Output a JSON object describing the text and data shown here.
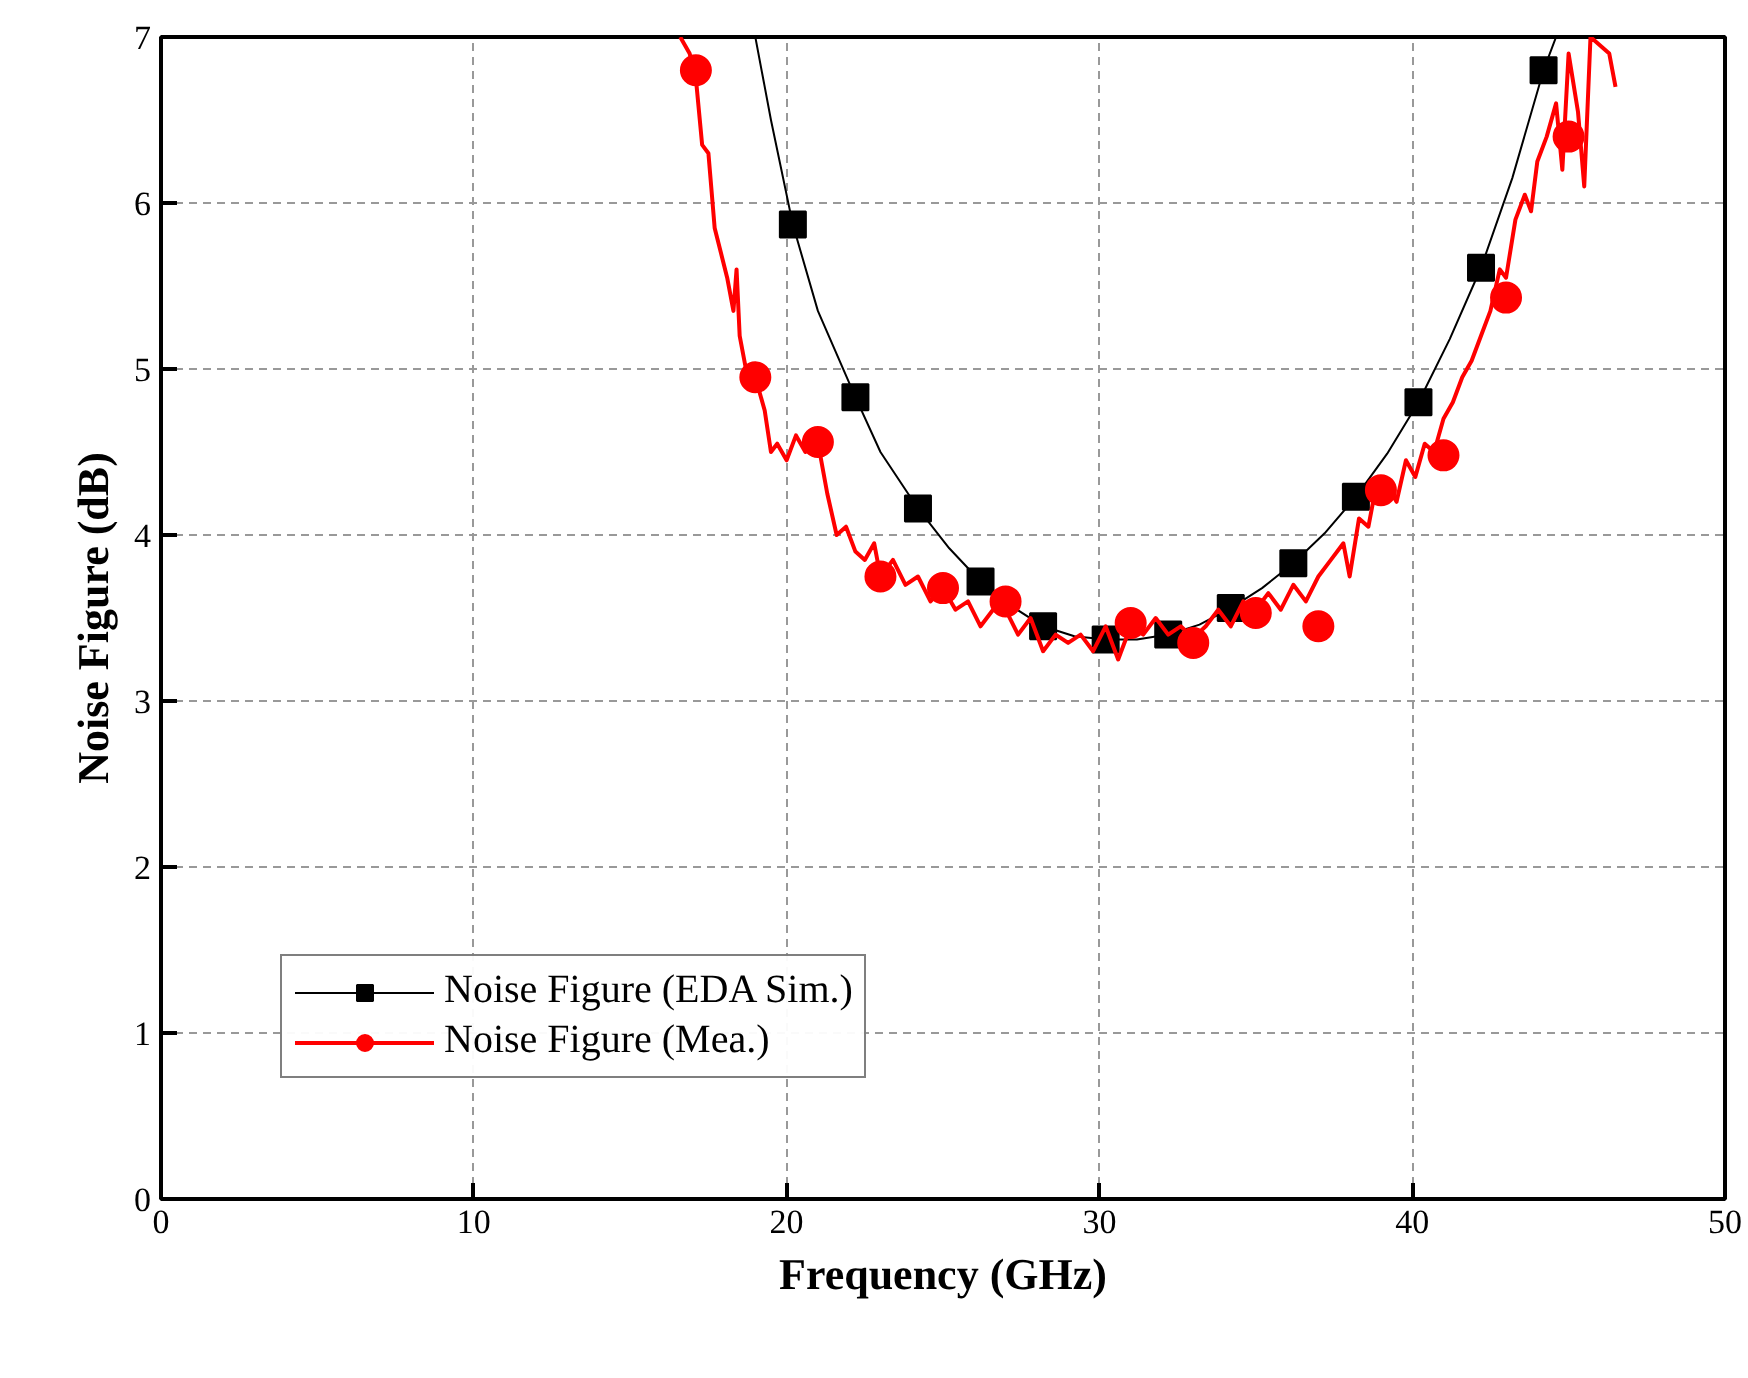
{
  "chart_data": {
    "type": "line",
    "xlabel": "Frequency (GHz)",
    "ylabel": "Noise Figure (dB)",
    "xlim": [
      0,
      50
    ],
    "ylim": [
      0,
      7
    ],
    "xticks": [
      0,
      10,
      20,
      30,
      40,
      50
    ],
    "yticks": [
      0,
      1,
      2,
      3,
      4,
      5,
      6,
      7
    ],
    "grid": true,
    "legend": "bottom left",
    "series": [
      {
        "name": "Noise Figure (EDA Sim.)",
        "color": "#000000",
        "marker": "none",
        "x": [
          19.0,
          19.5,
          20.2,
          21,
          22.2,
          23,
          24.2,
          25.2,
          26.2,
          27.2,
          28.2,
          29.2,
          30.2,
          31.2,
          32.2,
          33.2,
          34.2,
          35.2,
          36.2,
          37.2,
          38.2,
          39.2,
          40.2,
          41.2,
          42.2,
          43.2,
          44.2,
          44.6
        ],
        "values": [
          7.0,
          6.5,
          5.87,
          5.35,
          4.83,
          4.5,
          4.16,
          3.92,
          3.72,
          3.57,
          3.45,
          3.39,
          3.37,
          3.37,
          3.4,
          3.46,
          3.56,
          3.68,
          3.83,
          4.01,
          4.23,
          4.49,
          4.8,
          5.18,
          5.61,
          6.15,
          6.8,
          7.0
        ]
      },
      {
        "color": "#000000",
        "type": "scatter",
        "marker": "square",
        "x": [
          20.2,
          22.2,
          24.2,
          26.2,
          28.2,
          30.2,
          32.2,
          34.2,
          36.2,
          38.2,
          40.2,
          42.2,
          44.2
        ],
        "values": [
          5.87,
          4.83,
          4.16,
          3.72,
          3.45,
          3.37,
          3.4,
          3.56,
          3.83,
          4.23,
          4.8,
          5.61,
          6.8
        ]
      },
      {
        "name": "Noise Figure (Mea.)",
        "color": "#ff0000",
        "marker": "none",
        "x": [
          16.6,
          16.9,
          17.1,
          17.3,
          17.5,
          17.7,
          17.9,
          18.1,
          18.3,
          18.4,
          18.5,
          18.7,
          19.0,
          19.3,
          19.5,
          19.7,
          20.0,
          20.3,
          20.6,
          21.0,
          21.3,
          21.6,
          21.9,
          22.2,
          22.5,
          22.8,
          23.0,
          23.4,
          23.8,
          24.2,
          24.6,
          25.0,
          25.4,
          25.8,
          26.2,
          26.6,
          27.0,
          27.4,
          27.8,
          28.2,
          28.6,
          29.0,
          29.4,
          29.8,
          30.2,
          30.6,
          31.0,
          31.4,
          31.8,
          32.2,
          32.6,
          33.0,
          33.4,
          33.8,
          34.2,
          34.6,
          35.0,
          35.4,
          35.8,
          36.2,
          36.6,
          37.0,
          37.4,
          37.8,
          38.0,
          38.3,
          38.6,
          38.9,
          39.2,
          39.5,
          39.8,
          40.1,
          40.4,
          40.7,
          41.0,
          41.3,
          41.6,
          41.9,
          42.2,
          42.5,
          42.8,
          43.0,
          43.3,
          43.6,
          43.8,
          44.0,
          44.3,
          44.6,
          44.8,
          45.0,
          45.3,
          45.5,
          45.7,
          46.0,
          46.3,
          46.5
        ],
        "values": [
          7.0,
          6.9,
          6.75,
          6.35,
          6.3,
          5.85,
          5.7,
          5.55,
          5.35,
          5.6,
          5.2,
          5.0,
          4.95,
          4.75,
          4.5,
          4.55,
          4.45,
          4.6,
          4.5,
          4.56,
          4.25,
          4.0,
          4.05,
          3.9,
          3.85,
          3.95,
          3.75,
          3.85,
          3.7,
          3.75,
          3.6,
          3.68,
          3.55,
          3.6,
          3.45,
          3.55,
          3.55,
          3.4,
          3.5,
          3.3,
          3.4,
          3.35,
          3.4,
          3.3,
          3.45,
          3.25,
          3.45,
          3.4,
          3.5,
          3.4,
          3.45,
          3.38,
          3.45,
          3.55,
          3.45,
          3.6,
          3.55,
          3.65,
          3.55,
          3.7,
          3.6,
          3.75,
          3.85,
          3.95,
          3.75,
          4.1,
          4.05,
          4.35,
          4.3,
          4.2,
          4.45,
          4.35,
          4.55,
          4.5,
          4.7,
          4.8,
          4.95,
          5.05,
          5.2,
          5.35,
          5.6,
          5.55,
          5.9,
          6.05,
          5.95,
          6.25,
          6.4,
          6.6,
          6.2,
          6.9,
          6.55,
          6.1,
          7.0,
          6.95,
          6.9,
          6.7
        ]
      },
      {
        "color": "#ff0000",
        "type": "scatter",
        "marker": "circle",
        "x": [
          17.1,
          19.0,
          21.0,
          23.0,
          25.0,
          27.0,
          31.0,
          33.0,
          35.0,
          37.0,
          39.0,
          41.0,
          43.0,
          45.0
        ],
        "values": [
          6.8,
          4.95,
          4.56,
          3.75,
          3.68,
          3.6,
          3.47,
          3.35,
          3.53,
          3.45,
          4.27,
          4.48,
          5.43,
          6.4
        ]
      }
    ]
  }
}
